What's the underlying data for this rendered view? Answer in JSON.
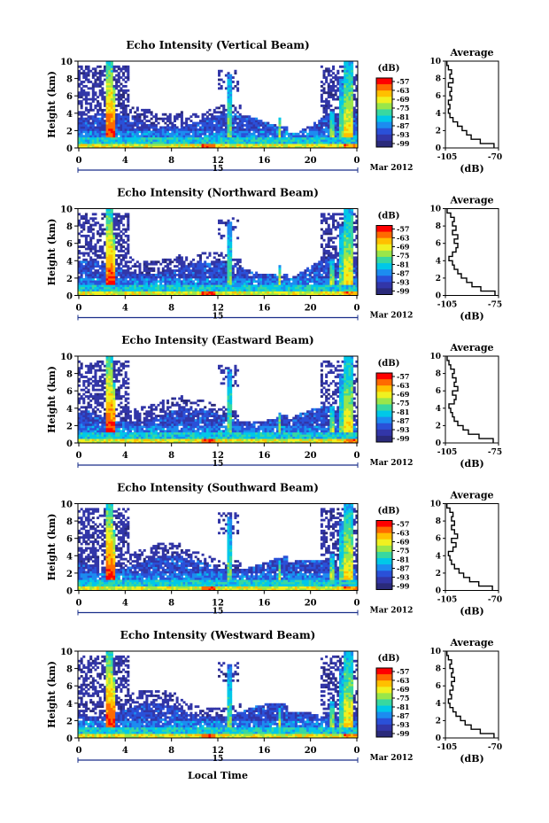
{
  "figure": {
    "date_label": "Mar 2012",
    "day_label": "15",
    "xlabel": "Local Time"
  },
  "colorbar": {
    "unit_label": "(dB)",
    "tick_labels": [
      "-57",
      "-63",
      "-69",
      "-75",
      "-81",
      "-87",
      "-93",
      "-99"
    ],
    "colors": [
      "#ff0000",
      "#ff6a00",
      "#ffc000",
      "#f0f020",
      "#9ae64a",
      "#38d8a0",
      "#00c8e8",
      "#1c8cf0",
      "#2a50d8",
      "#3236a8",
      "#2a2a7a"
    ]
  },
  "chart_data": [
    {
      "type": "heatmap",
      "title": "Echo Intensity (Vertical Beam)",
      "ylabel": "Height (km)",
      "xlim": [
        0,
        24
      ],
      "ylim": [
        0,
        10
      ],
      "x_ticks": [
        "0",
        "4",
        "8",
        "12",
        "16",
        "20",
        "0"
      ],
      "y_ticks": [
        "0",
        "2",
        "4",
        "6",
        "8",
        "10"
      ],
      "profile": {
        "title": "Average",
        "xlabel": "(dB)",
        "xlim": [
          -105,
          -70
        ],
        "x_ticks": [
          "-105",
          "-70"
        ],
        "height_km": [
          0,
          0.5,
          1,
          1.5,
          2,
          2.5,
          3,
          3.5,
          4,
          4.5,
          5,
          5.5,
          6,
          6.5,
          7,
          7.5,
          8,
          8.5,
          9,
          9.5
        ],
        "value_db": [
          -73,
          -82,
          -88,
          -91,
          -94,
          -97,
          -100,
          -102,
          -103,
          -102,
          -103,
          -101,
          -102,
          -101,
          -103,
          -100,
          -102,
          -101,
          -103,
          -104
        ]
      }
    },
    {
      "type": "heatmap",
      "title": "Echo Intensity (Northward Beam)",
      "ylabel": "Height (km)",
      "xlim": [
        0,
        24
      ],
      "ylim": [
        0,
        10
      ],
      "x_ticks": [
        "0",
        "4",
        "8",
        "12",
        "16",
        "20",
        "0"
      ],
      "y_ticks": [
        "0",
        "2",
        "4",
        "6",
        "8",
        "10"
      ],
      "profile": {
        "title": "Average",
        "xlabel": "(dB)",
        "xlim": [
          -105,
          -75
        ],
        "x_ticks": [
          "-105",
          "-75"
        ],
        "height_km": [
          0,
          0.5,
          1,
          1.5,
          2,
          2.5,
          3,
          3.5,
          4,
          4.5,
          5,
          5.5,
          6,
          6.5,
          7,
          7.5,
          8,
          8.5,
          9,
          9.5
        ],
        "value_db": [
          -77,
          -85,
          -90,
          -93,
          -96,
          -98,
          -100,
          -101,
          -103,
          -101,
          -99,
          -98,
          -100,
          -98,
          -101,
          -99,
          -101,
          -100,
          -102,
          -104
        ]
      }
    },
    {
      "type": "heatmap",
      "title": "Echo Intensity (Eastward Beam)",
      "ylabel": "Height (km)",
      "xlim": [
        0,
        24
      ],
      "ylim": [
        0,
        10
      ],
      "x_ticks": [
        "0",
        "4",
        "8",
        "12",
        "16",
        "20",
        "0"
      ],
      "y_ticks": [
        "0",
        "2",
        "4",
        "6",
        "8",
        "10"
      ],
      "profile": {
        "title": "Average",
        "xlabel": "(dB)",
        "xlim": [
          -105,
          -75
        ],
        "x_ticks": [
          "-105",
          "-75"
        ],
        "height_km": [
          0,
          0.5,
          1,
          1.5,
          2,
          2.5,
          3,
          3.5,
          4,
          4.5,
          5,
          5.5,
          6,
          6.5,
          7,
          7.5,
          8,
          8.5,
          9,
          9.5
        ],
        "value_db": [
          -78,
          -86,
          -92,
          -95,
          -98,
          -100,
          -101,
          -102,
          -103,
          -100,
          -99,
          -101,
          -98,
          -100,
          -99,
          -101,
          -100,
          -102,
          -103,
          -104
        ]
      }
    },
    {
      "type": "heatmap",
      "title": "Echo Intensity (Southward Beam)",
      "ylabel": "Height (km)",
      "xlim": [
        0,
        24
      ],
      "ylim": [
        0,
        10
      ],
      "x_ticks": [
        "0",
        "4",
        "8",
        "12",
        "16",
        "20",
        "0"
      ],
      "y_ticks": [
        "0",
        "2",
        "4",
        "6",
        "8",
        "10"
      ],
      "profile": {
        "title": "Average",
        "xlabel": "(dB)",
        "xlim": [
          -105,
          -70
        ],
        "x_ticks": [
          "-105",
          "-70"
        ],
        "height_km": [
          0,
          0.5,
          1,
          1.5,
          2,
          2.5,
          3,
          3.5,
          4,
          4.5,
          5,
          5.5,
          6,
          6.5,
          7,
          7.5,
          8,
          8.5,
          9,
          9.5
        ],
        "value_db": [
          -74,
          -83,
          -89,
          -93,
          -96,
          -99,
          -101,
          -102,
          -103,
          -100,
          -98,
          -101,
          -97,
          -99,
          -101,
          -99,
          -101,
          -100,
          -102,
          -104
        ]
      }
    },
    {
      "type": "heatmap",
      "title": "Echo Intensity (Westward Beam)",
      "ylabel": "Height (km)",
      "xlim": [
        0,
        24
      ],
      "ylim": [
        0,
        10
      ],
      "x_ticks": [
        "0",
        "4",
        "8",
        "12",
        "16",
        "20",
        "0"
      ],
      "y_ticks": [
        "0",
        "2",
        "4",
        "6",
        "8",
        "10"
      ],
      "profile": {
        "title": "Average",
        "xlabel": "(dB)",
        "xlim": [
          -105,
          -70
        ],
        "x_ticks": [
          "-105",
          "-70"
        ],
        "height_km": [
          0,
          0.5,
          1,
          1.5,
          2,
          2.5,
          3,
          3.5,
          4,
          4.5,
          5,
          5.5,
          6,
          6.5,
          7,
          7.5,
          8,
          8.5,
          9,
          9.5
        ],
        "value_db": [
          -73,
          -82,
          -88,
          -92,
          -95,
          -98,
          -100,
          -102,
          -103,
          -101,
          -102,
          -100,
          -101,
          -99,
          -101,
          -100,
          -102,
          -101,
          -103,
          -104
        ]
      }
    }
  ]
}
